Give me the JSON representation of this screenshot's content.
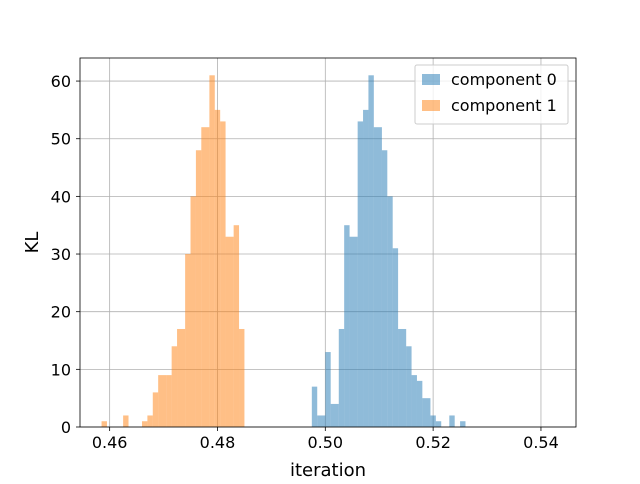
{
  "chart_data": {
    "type": "histogram",
    "xlabel": "iteration",
    "ylabel": "KL",
    "xlim": [
      0.4545,
      0.5465
    ],
    "ylim": [
      0,
      64
    ],
    "x_ticks": [
      0.46,
      0.48,
      0.5,
      0.52,
      0.54
    ],
    "x_tick_labels": [
      "0.46",
      "0.48",
      "0.50",
      "0.52",
      "0.54"
    ],
    "y_ticks": [
      0,
      10,
      20,
      30,
      40,
      50,
      60
    ],
    "y_tick_labels": [
      "0",
      "10",
      "20",
      "30",
      "40",
      "50",
      "60"
    ],
    "grid": true,
    "legend_position": "top-right",
    "series": [
      {
        "name": "component 0",
        "color": "#1f77b4",
        "opacity": 0.5,
        "bins": [
          {
            "x0": 0.4925,
            "x1": 0.4975,
            "y": 0
          },
          {
            "x0": 0.4975,
            "x1": 0.4985,
            "y": 7
          },
          {
            "x0": 0.4985,
            "x1": 0.5,
            "y": 2
          },
          {
            "x0": 0.5,
            "x1": 0.501,
            "y": 13
          },
          {
            "x0": 0.501,
            "x1": 0.5025,
            "y": 4
          },
          {
            "x0": 0.5025,
            "x1": 0.5035,
            "y": 17
          },
          {
            "x0": 0.5035,
            "x1": 0.5045,
            "y": 35
          },
          {
            "x0": 0.5045,
            "x1": 0.506,
            "y": 33
          },
          {
            "x0": 0.506,
            "x1": 0.507,
            "y": 53
          },
          {
            "x0": 0.507,
            "x1": 0.508,
            "y": 55
          },
          {
            "x0": 0.508,
            "x1": 0.509,
            "y": 61
          },
          {
            "x0": 0.509,
            "x1": 0.5105,
            "y": 52
          },
          {
            "x0": 0.5105,
            "x1": 0.5115,
            "y": 48
          },
          {
            "x0": 0.5115,
            "x1": 0.5125,
            "y": 40
          },
          {
            "x0": 0.5125,
            "x1": 0.5135,
            "y": 31
          },
          {
            "x0": 0.5135,
            "x1": 0.515,
            "y": 17
          },
          {
            "x0": 0.515,
            "x1": 0.516,
            "y": 14
          },
          {
            "x0": 0.516,
            "x1": 0.517,
            "y": 9
          },
          {
            "x0": 0.517,
            "x1": 0.518,
            "y": 8
          },
          {
            "x0": 0.518,
            "x1": 0.5195,
            "y": 5
          },
          {
            "x0": 0.5195,
            "x1": 0.5205,
            "y": 2
          },
          {
            "x0": 0.5205,
            "x1": 0.5215,
            "y": 1
          },
          {
            "x0": 0.523,
            "x1": 0.524,
            "y": 2
          },
          {
            "x0": 0.525,
            "x1": 0.526,
            "y": 1
          }
        ]
      },
      {
        "name": "component 1",
        "color": "#ff7f0e",
        "opacity": 0.5,
        "bins": [
          {
            "x0": 0.4585,
            "x1": 0.4595,
            "y": 1
          },
          {
            "x0": 0.4625,
            "x1": 0.4635,
            "y": 2
          },
          {
            "x0": 0.466,
            "x1": 0.467,
            "y": 1
          },
          {
            "x0": 0.467,
            "x1": 0.468,
            "y": 2
          },
          {
            "x0": 0.468,
            "x1": 0.469,
            "y": 6
          },
          {
            "x0": 0.469,
            "x1": 0.4705,
            "y": 9
          },
          {
            "x0": 0.4705,
            "x1": 0.4715,
            "y": 9
          },
          {
            "x0": 0.4715,
            "x1": 0.4725,
            "y": 14
          },
          {
            "x0": 0.4725,
            "x1": 0.474,
            "y": 17
          },
          {
            "x0": 0.474,
            "x1": 0.475,
            "y": 30
          },
          {
            "x0": 0.475,
            "x1": 0.476,
            "y": 40
          },
          {
            "x0": 0.476,
            "x1": 0.477,
            "y": 48
          },
          {
            "x0": 0.477,
            "x1": 0.4785,
            "y": 52
          },
          {
            "x0": 0.4785,
            "x1": 0.4795,
            "y": 61
          },
          {
            "x0": 0.4795,
            "x1": 0.4805,
            "y": 55
          },
          {
            "x0": 0.4805,
            "x1": 0.4815,
            "y": 53
          },
          {
            "x0": 0.4815,
            "x1": 0.483,
            "y": 33
          },
          {
            "x0": 0.483,
            "x1": 0.484,
            "y": 35
          },
          {
            "x0": 0.484,
            "x1": 0.485,
            "y": 17
          },
          {
            "x0": 0.485,
            "x1": 0.4865,
            "y": 0
          }
        ]
      }
    ]
  }
}
